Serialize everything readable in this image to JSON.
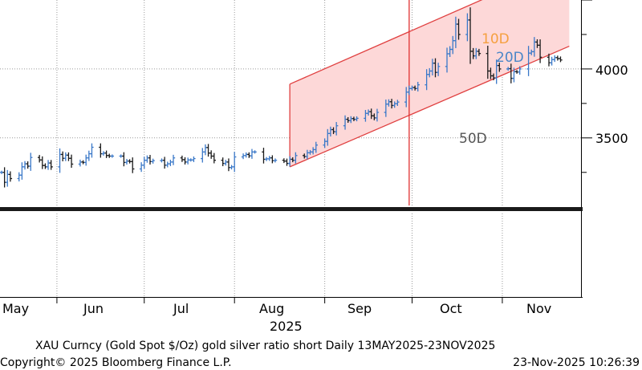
{
  "chart_data": {
    "type": "line",
    "style": "ohlc-bars",
    "title": "XAU Curncy (Gold Spot   $/Oz) gold silver ratio short Daily 13MAY2025-23NOV2025",
    "copyright": "Copyright© 2025 Bloomberg Finance L.P.",
    "timestamp": "23-Nov-2025 10:26:39",
    "year_label": "2025",
    "x_tick_labels": [
      "May",
      "Jun",
      "Jul",
      "Aug",
      "Sep",
      "Oct",
      "Nov"
    ],
    "y_tick_labels": [
      "3500",
      "4000"
    ],
    "ylim": [
      3010,
      4500
    ],
    "xlim": [
      "2025-05-13",
      "2025-11-25"
    ],
    "y_axis_position": "right",
    "grid": true,
    "annotations": [
      {
        "text": "10D",
        "color": "#f5a040"
      },
      {
        "text": "20D",
        "color": "#4a86c8"
      },
      {
        "text": "50D",
        "color": "#555555"
      }
    ],
    "vertical_marker_date": "2025-09-30",
    "channel": {
      "start_date": "2025-08-20",
      "end_date": "2025-11-24",
      "lower_start": 3290,
      "lower_end": 4165,
      "upper_start": 3890,
      "upper_end": 4780,
      "fill": "#fdd8d8",
      "line": "#e04040"
    },
    "series": [
      {
        "name": "",
        "values": [
          {
            "x": "2025-05-13",
            "y": 3250
          },
          {
            "x": "2025-05-14",
            "y": 3178
          },
          {
            "x": "2025-05-15",
            "y": 3235
          },
          {
            "x": "2025-05-16",
            "y": 3205
          },
          {
            "x": "2025-05-19",
            "y": 3230
          },
          {
            "x": "2025-05-20",
            "y": 3290
          },
          {
            "x": "2025-05-21",
            "y": 3312
          },
          {
            "x": "2025-05-22",
            "y": 3295
          },
          {
            "x": "2025-05-23",
            "y": 3358
          },
          {
            "x": "2025-05-26",
            "y": 3340
          },
          {
            "x": "2025-05-27",
            "y": 3300
          },
          {
            "x": "2025-05-28",
            "y": 3290
          },
          {
            "x": "2025-05-29",
            "y": 3318
          },
          {
            "x": "2025-05-30",
            "y": 3290
          },
          {
            "x": "2025-06-02",
            "y": 3380
          },
          {
            "x": "2025-06-03",
            "y": 3352
          },
          {
            "x": "2025-06-04",
            "y": 3375
          },
          {
            "x": "2025-06-05",
            "y": 3352
          },
          {
            "x": "2025-06-06",
            "y": 3310
          },
          {
            "x": "2025-06-09",
            "y": 3325
          },
          {
            "x": "2025-06-10",
            "y": 3322
          },
          {
            "x": "2025-06-11",
            "y": 3355
          },
          {
            "x": "2025-06-12",
            "y": 3385
          },
          {
            "x": "2025-06-13",
            "y": 3432
          },
          {
            "x": "2025-06-16",
            "y": 3385
          },
          {
            "x": "2025-06-17",
            "y": 3390
          },
          {
            "x": "2025-06-18",
            "y": 3372
          },
          {
            "x": "2025-06-19",
            "y": 3368
          },
          {
            "x": "2025-06-20",
            "y": 3368
          },
          {
            "x": "2025-06-23",
            "y": 3368
          },
          {
            "x": "2025-06-24",
            "y": 3322
          },
          {
            "x": "2025-06-25",
            "y": 3332
          },
          {
            "x": "2025-06-26",
            "y": 3328
          },
          {
            "x": "2025-06-27",
            "y": 3275
          },
          {
            "x": "2025-06-30",
            "y": 3302
          },
          {
            "x": "2025-07-01",
            "y": 3338
          },
          {
            "x": "2025-07-02",
            "y": 3355
          },
          {
            "x": "2025-07-03",
            "y": 3328
          },
          {
            "x": "2025-07-04",
            "y": 3335
          },
          {
            "x": "2025-07-07",
            "y": 3338
          },
          {
            "x": "2025-07-08",
            "y": 3302
          },
          {
            "x": "2025-07-09",
            "y": 3312
          },
          {
            "x": "2025-07-10",
            "y": 3325
          },
          {
            "x": "2025-07-11",
            "y": 3355
          },
          {
            "x": "2025-07-14",
            "y": 3342
          },
          {
            "x": "2025-07-15",
            "y": 3325
          },
          {
            "x": "2025-07-16",
            "y": 3340
          },
          {
            "x": "2025-07-17",
            "y": 3340
          },
          {
            "x": "2025-07-18",
            "y": 3350
          },
          {
            "x": "2025-07-21",
            "y": 3398
          },
          {
            "x": "2025-07-22",
            "y": 3430
          },
          {
            "x": "2025-07-23",
            "y": 3390
          },
          {
            "x": "2025-07-24",
            "y": 3368
          },
          {
            "x": "2025-07-25",
            "y": 3338
          },
          {
            "x": "2025-07-28",
            "y": 3315
          },
          {
            "x": "2025-07-29",
            "y": 3325
          },
          {
            "x": "2025-07-30",
            "y": 3285
          },
          {
            "x": "2025-07-31",
            "y": 3290
          },
          {
            "x": "2025-08-01",
            "y": 3362
          },
          {
            "x": "2025-08-04",
            "y": 3372
          },
          {
            "x": "2025-08-05",
            "y": 3380
          },
          {
            "x": "2025-08-06",
            "y": 3370
          },
          {
            "x": "2025-08-07",
            "y": 3398
          },
          {
            "x": "2025-08-08",
            "y": 3398
          },
          {
            "x": "2025-08-11",
            "y": 3345
          },
          {
            "x": "2025-08-12",
            "y": 3348
          },
          {
            "x": "2025-08-13",
            "y": 3355
          },
          {
            "x": "2025-08-14",
            "y": 3335
          },
          {
            "x": "2025-08-15",
            "y": 3338
          },
          {
            "x": "2025-08-18",
            "y": 3332
          },
          {
            "x": "2025-08-19",
            "y": 3315
          },
          {
            "x": "2025-08-20",
            "y": 3345
          },
          {
            "x": "2025-08-21",
            "y": 3338
          },
          {
            "x": "2025-08-22",
            "y": 3372
          },
          {
            "x": "2025-08-25",
            "y": 3365
          },
          {
            "x": "2025-08-26",
            "y": 3392
          },
          {
            "x": "2025-08-27",
            "y": 3398
          },
          {
            "x": "2025-08-28",
            "y": 3415
          },
          {
            "x": "2025-08-29",
            "y": 3448
          },
          {
            "x": "2025-09-01",
            "y": 3475
          },
          {
            "x": "2025-09-02",
            "y": 3532
          },
          {
            "x": "2025-09-03",
            "y": 3560
          },
          {
            "x": "2025-09-04",
            "y": 3545
          },
          {
            "x": "2025-09-05",
            "y": 3588
          },
          {
            "x": "2025-09-08",
            "y": 3635
          },
          {
            "x": "2025-09-09",
            "y": 3625
          },
          {
            "x": "2025-09-10",
            "y": 3640
          },
          {
            "x": "2025-09-11",
            "y": 3635
          },
          {
            "x": "2025-09-12",
            "y": 3642
          },
          {
            "x": "2025-09-15",
            "y": 3678
          },
          {
            "x": "2025-09-16",
            "y": 3690
          },
          {
            "x": "2025-09-17",
            "y": 3660
          },
          {
            "x": "2025-09-18",
            "y": 3645
          },
          {
            "x": "2025-09-19",
            "y": 3685
          },
          {
            "x": "2025-09-22",
            "y": 3745
          },
          {
            "x": "2025-09-23",
            "y": 3762
          },
          {
            "x": "2025-09-24",
            "y": 3735
          },
          {
            "x": "2025-09-25",
            "y": 3748
          },
          {
            "x": "2025-09-26",
            "y": 3760
          },
          {
            "x": "2025-09-29",
            "y": 3832
          },
          {
            "x": "2025-09-30",
            "y": 3858
          },
          {
            "x": "2025-10-01",
            "y": 3865
          },
          {
            "x": "2025-10-02",
            "y": 3858
          },
          {
            "x": "2025-10-03",
            "y": 3885
          },
          {
            "x": "2025-10-06",
            "y": 3960
          },
          {
            "x": "2025-10-07",
            "y": 3985
          },
          {
            "x": "2025-10-08",
            "y": 4042
          },
          {
            "x": "2025-10-09",
            "y": 3975
          },
          {
            "x": "2025-10-10",
            "y": 4018
          },
          {
            "x": "2025-10-13",
            "y": 4110
          },
          {
            "x": "2025-10-14",
            "y": 4142
          },
          {
            "x": "2025-10-15",
            "y": 4205
          },
          {
            "x": "2025-10-16",
            "y": 4325
          },
          {
            "x": "2025-10-17",
            "y": 4250
          },
          {
            "x": "2025-10-20",
            "y": 4355
          },
          {
            "x": "2025-10-21",
            "y": 4128
          },
          {
            "x": "2025-10-22",
            "y": 4095
          },
          {
            "x": "2025-10-23",
            "y": 4128
          },
          {
            "x": "2025-10-24",
            "y": 4112
          },
          {
            "x": "2025-10-27",
            "y": 3985
          },
          {
            "x": "2025-10-28",
            "y": 3950
          },
          {
            "x": "2025-10-29",
            "y": 3935
          },
          {
            "x": "2025-10-30",
            "y": 4025
          },
          {
            "x": "2025-10-31",
            "y": 4000
          },
          {
            "x": "2025-11-03",
            "y": 4002
          },
          {
            "x": "2025-11-04",
            "y": 3932
          },
          {
            "x": "2025-11-05",
            "y": 3980
          },
          {
            "x": "2025-11-06",
            "y": 3978
          },
          {
            "x": "2025-11-07",
            "y": 4000
          },
          {
            "x": "2025-11-10",
            "y": 4115
          },
          {
            "x": "2025-11-11",
            "y": 4125
          },
          {
            "x": "2025-11-12",
            "y": 4195
          },
          {
            "x": "2025-11-13",
            "y": 4172
          },
          {
            "x": "2025-11-14",
            "y": 4085
          },
          {
            "x": "2025-11-17",
            "y": 4045
          },
          {
            "x": "2025-11-18",
            "y": 4068
          },
          {
            "x": "2025-11-19",
            "y": 4082
          },
          {
            "x": "2025-11-20",
            "y": 4075
          },
          {
            "x": "2025-11-21",
            "y": 4065
          }
        ]
      }
    ]
  }
}
